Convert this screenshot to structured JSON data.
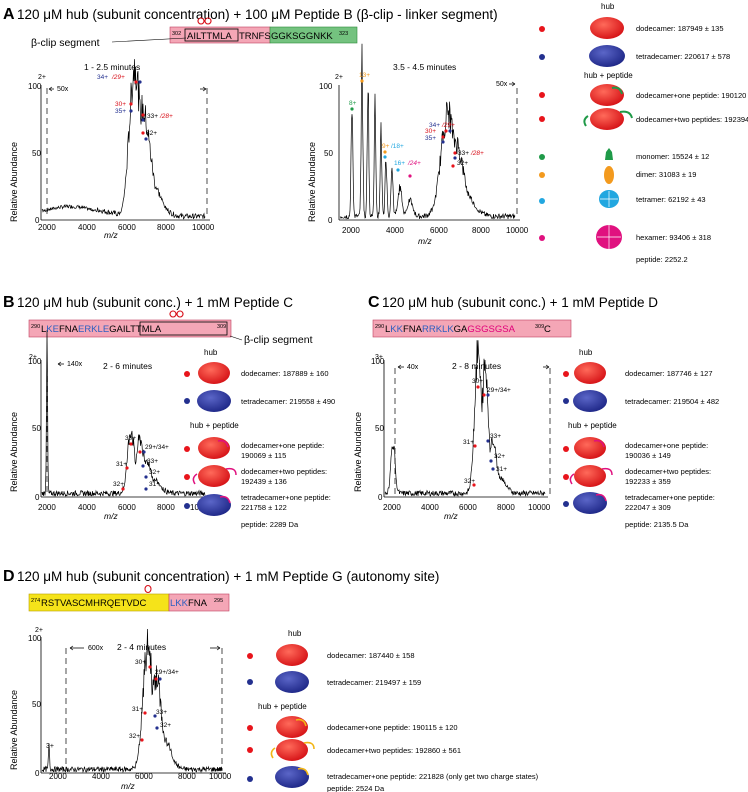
{
  "colors": {
    "red": "#e8141b",
    "blue": "#23308f",
    "green": "#1f9a48",
    "orange": "#f39a1e",
    "cyan": "#22a7e0",
    "magenta": "#e0117f",
    "pink": "#f4a6b6",
    "seqgreen": "#74c27f",
    "seqyellow": "#f5e31a",
    "linker": "#e0007a",
    "kblue": "#2e5fc0"
  },
  "common": {
    "xlabel": "m/z",
    "ylabel": "Relative Abundance",
    "xticks": [
      "2000",
      "4000",
      "6000",
      "8000",
      "10000"
    ],
    "yticks": [
      "0",
      "50",
      "100"
    ],
    "hub": "hub",
    "hub_peptide": "hub + peptide",
    "segment": "β-clip segment"
  },
  "panelA": {
    "letter": "A",
    "title": "120 μM hub (subunit concentration) + 100 μM Peptide B (β-clip - linker segment)",
    "seq_start": "302",
    "seq_box": "AILTTMLA",
    "seq_mid": "TRNFS",
    "seq_green": "GGKSGGNKK",
    "seq_end": "323",
    "spec1": {
      "time": "1 - 2.5 minutes",
      "zoom": "50x",
      "charge": "2+",
      "labels": {
        "c34": "34+",
        "c29": "/29+",
        "c30": "30+",
        "c35": "35+",
        "c33": "33+",
        "c28": "/28+",
        "c32": "32+"
      }
    },
    "spec2": {
      "time": "3.5 - 4.5 minutes",
      "zoom": "50x",
      "charge": "2+",
      "labels": {
        "c13": "13+",
        "c8": "8+",
        "c9": "9+",
        "c18": "/18+",
        "c16": "16+",
        "c24": "/24+",
        "c34": "34+",
        "c29": "/29+",
        "c30": "30+",
        "c35": "35+",
        "c33": "33+",
        "c28": "/28+",
        "c32": "32+"
      }
    },
    "legend": {
      "dodecamer": "dodecamer: 187949 ± 135",
      "tetradecamer": "tetradecamer: 220617 ± 578",
      "dp1": "dodecamer+one peptide: 190120 ± 222",
      "dp2": "dodecamer+two peptides: 192394 ± 339",
      "monomer": "monomer: 15524 ± 12",
      "dimer": "dimer: 31083 ± 19",
      "tetramer": "tetramer: 62192 ± 43",
      "hexamer": "hexamer: 93406 ±  318",
      "peptide": "peptide: 2252.2"
    }
  },
  "panelB": {
    "letter": "B",
    "title": "120 μM hub (subunit conc.) + 1 mM Peptide C",
    "seq_start": "290",
    "seq_end": "309",
    "seq_parts": [
      "L",
      "KE",
      "FNA",
      "ERK",
      "LE",
      "GAILTTMLA"
    ],
    "time": "2 - 6 minutes",
    "zoom": "140x",
    "charge": "2+",
    "labels": {
      "c30": "30+",
      "c29": "29+/34+",
      "c31": "31+",
      "c33": "33+",
      "c32a": "32+",
      "c32b": "32+",
      "c31b": "31+"
    },
    "legend": {
      "dodecamer": "dodecamer: 187889 ± 160",
      "tetradecamer": "tetradecamer: 219558 ± 490",
      "dp1a": "dodecamer+one peptide:",
      "dp1b": "190069 ± 115",
      "dp2a": "dodecamer+two peptides:",
      "dp2b": "192439 ± 136",
      "tp1a": "tetradecamer+one peptide:",
      "tp1b": "221758 ± 122",
      "peptide": "peptide: 2289 Da"
    }
  },
  "panelC": {
    "letter": "C",
    "title": "120 μM hub (subunit conc.) + 1 mM Peptide D",
    "seq_start": "290",
    "seq_end": "309",
    "seq_parts": [
      "L",
      "KK",
      "FNA",
      "RRK",
      "LK",
      "GA",
      "GSGSGSA",
      "C"
    ],
    "time": "2 - 8 minutes",
    "zoom": "40x",
    "charge": "3+",
    "labels": {
      "c30": "30+",
      "c29": "29+/34+",
      "c31": "31+",
      "c33": "33+",
      "c32": "32+",
      "c31b": "31+",
      "c32b": "32+"
    },
    "legend": {
      "dodecamer": "dodecamer: 187746 ± 127",
      "tetradecamer": "tetradecamer: 219504 ± 482",
      "dp1a": "dodecamer+one peptide:",
      "dp1b": "190036 ± 149",
      "dp2a": "dodecamer+two peptides:",
      "dp2b": "192233 ± 359",
      "tp1a": "tetradecamer+one peptide:",
      "tp1b": "222047 ± 309",
      "peptide": "peptide: 2135.5 Da"
    }
  },
  "panelD": {
    "letter": "D",
    "title": "120 μM hub (subunit concentration) + 1 mM Peptide G (autonomy site)",
    "seq_start": "274",
    "seq_yellow": "RSTVASCMHRQETVDC",
    "seq_pink": "LKKFNA",
    "seq_end": "295",
    "time": "2 - 4 minutes",
    "zoom": "600x",
    "charge": "2+",
    "charge3": "3+",
    "labels": {
      "c30": "30+",
      "c29": "29+/34+",
      "c31": "31+",
      "c33": "33+",
      "c32a": "32+",
      "c32b": "32+"
    },
    "legend": {
      "dodecamer": "dodecamer: 187440 ± 158",
      "tetradecamer": "tetradecamer: 219497 ± 159",
      "dp1": "dodecamer+one peptide: 190115 ± 120",
      "dp2": "dodecamer+two peptides: 192860 ± 561",
      "tp1": "tetradecamer+one peptide: 221828 (only get two charge states)",
      "peptide": "peptide: 2524 Da"
    }
  }
}
